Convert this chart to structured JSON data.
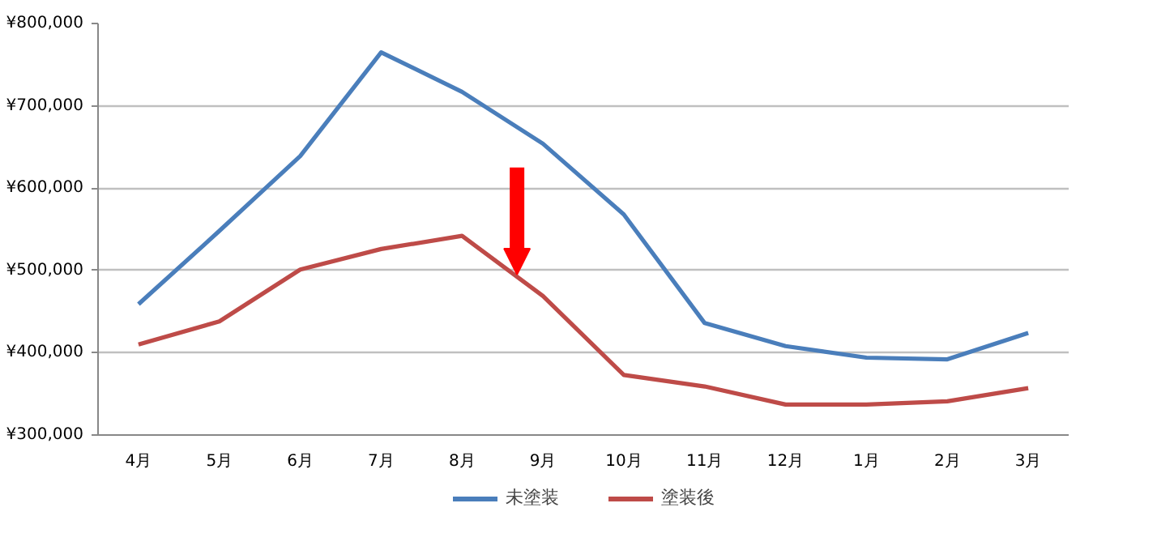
{
  "chart_data": {
    "type": "line",
    "categories": [
      "4月",
      "5月",
      "6月",
      "7月",
      "8月",
      "9月",
      "10月",
      "11月",
      "12月",
      "1月",
      "2月",
      "3月"
    ],
    "series": [
      {
        "name": "未塗装",
        "color": "#4a7ebb",
        "values": [
          459000,
          548000,
          639000,
          765000,
          717000,
          654000,
          568000,
          436000,
          408000,
          394000,
          392000,
          424000
        ]
      },
      {
        "name": "塗装後",
        "color": "#be4b48",
        "values": [
          410000,
          438000,
          501000,
          526000,
          542000,
          469000,
          373000,
          359000,
          337000,
          337000,
          341000,
          357000
        ]
      }
    ],
    "ylim": [
      300000,
      800000
    ],
    "yticks": [
      {
        "value": 300000,
        "label": "¥300,000"
      },
      {
        "value": 400000,
        "label": "¥400,000"
      },
      {
        "value": 500000,
        "label": "¥500,000"
      },
      {
        "value": 600000,
        "label": "¥600,000"
      },
      {
        "value": 700000,
        "label": "¥700,000"
      },
      {
        "value": 800000,
        "label": "¥800,000"
      }
    ],
    "grid": "y",
    "legend": "bottom",
    "marker": "none",
    "line_style": "solid"
  }
}
